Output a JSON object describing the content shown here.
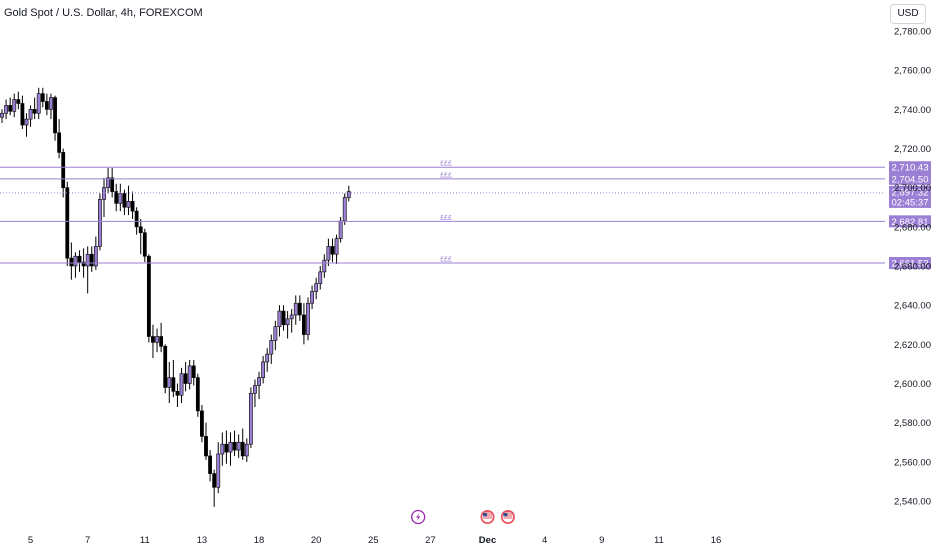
{
  "header": {
    "title": "Gold Spot / U.S. Dollar, 4h, FOREXCOM",
    "currency": "USD"
  },
  "colors": {
    "up_candle": "#9b7fd4",
    "down_candle": "#000000",
    "level_line": "#9b7fd4",
    "price_line": "#9b7fd4",
    "axis_text": "#131722"
  },
  "chart_data": {
    "type": "candlestick",
    "ylim": [
      2530,
      2790
    ],
    "y_ticks": [
      "2,780.00",
      "2,760.00",
      "2,740.00",
      "2,720.00",
      "2,700.00",
      "2,680.00",
      "2,660.00",
      "2,640.00",
      "2,620.00",
      "2,600.00",
      "2,580.00",
      "2,560.00",
      "2,540.00"
    ],
    "y_tick_values": [
      2780,
      2760,
      2740,
      2720,
      2700,
      2680,
      2660,
      2640,
      2620,
      2600,
      2580,
      2560,
      2540
    ],
    "x_ticks": [
      "5",
      "7",
      "11",
      "13",
      "18",
      "20",
      "25",
      "27",
      "Dec",
      "4",
      "9",
      "11",
      "16"
    ],
    "x_tick_candle_index": [
      7,
      21,
      35,
      49,
      63,
      77,
      91,
      105,
      119,
      133,
      147,
      161,
      175
    ],
    "levels": [
      {
        "label": "2,710.43",
        "value": 2710.43,
        "tag": "£££"
      },
      {
        "label": "2,704.50",
        "value": 2704.5,
        "tag": "£££"
      },
      {
        "label": "2,682.81",
        "value": 2682.81,
        "tag": "£££"
      },
      {
        "label": "2,661.52",
        "value": 2661.52,
        "tag": "£££"
      }
    ],
    "current_price": {
      "label": "2,697.32",
      "value": 2697.32,
      "countdown": "02:45:37"
    },
    "event_icons": [
      {
        "name": "flash-icon",
        "candle_index": 102
      },
      {
        "name": "us-flag-icon",
        "candle_index": 119
      },
      {
        "name": "us-flag-icon",
        "candle_index": 124
      }
    ],
    "candles": [
      [
        2736,
        2740,
        2733,
        2738
      ],
      [
        2738,
        2745,
        2735,
        2742
      ],
      [
        2742,
        2746,
        2737,
        2739
      ],
      [
        2739,
        2748,
        2736,
        2745
      ],
      [
        2745,
        2749,
        2740,
        2743
      ],
      [
        2743,
        2747,
        2730,
        2732
      ],
      [
        2732,
        2738,
        2726,
        2735
      ],
      [
        2735,
        2742,
        2731,
        2740
      ],
      [
        2740,
        2746,
        2735,
        2738
      ],
      [
        2738,
        2751,
        2735,
        2748
      ],
      [
        2748,
        2751,
        2741,
        2744
      ],
      [
        2744,
        2748,
        2737,
        2740
      ],
      [
        2740,
        2748,
        2735,
        2746
      ],
      [
        2746,
        2747,
        2724,
        2728
      ],
      [
        2728,
        2735,
        2715,
        2718
      ],
      [
        2718,
        2720,
        2695,
        2700
      ],
      [
        2700,
        2703,
        2660,
        2664
      ],
      [
        2664,
        2672,
        2653,
        2660
      ],
      [
        2660,
        2667,
        2654,
        2665
      ],
      [
        2665,
        2668,
        2657,
        2662
      ],
      [
        2662,
        2669,
        2654,
        2660
      ],
      [
        2660,
        2670,
        2646,
        2666
      ],
      [
        2666,
        2670,
        2657,
        2660
      ],
      [
        2660,
        2675,
        2658,
        2670
      ],
      [
        2670,
        2697,
        2668,
        2694
      ],
      [
        2694,
        2705,
        2685,
        2700
      ],
      [
        2700,
        2710,
        2697,
        2705
      ],
      [
        2705,
        2710,
        2695,
        2698
      ],
      [
        2698,
        2702,
        2688,
        2692
      ],
      [
        2692,
        2702,
        2688,
        2697
      ],
      [
        2697,
        2699,
        2686,
        2690
      ],
      [
        2690,
        2701,
        2686,
        2693
      ],
      [
        2693,
        2698,
        2684,
        2688
      ],
      [
        2688,
        2690,
        2676,
        2680
      ],
      [
        2680,
        2684,
        2666,
        2677
      ],
      [
        2677,
        2679,
        2662,
        2665
      ],
      [
        2665,
        2666,
        2621,
        2624
      ],
      [
        2624,
        2630,
        2613,
        2621
      ],
      [
        2621,
        2628,
        2616,
        2624
      ],
      [
        2624,
        2631,
        2616,
        2619
      ],
      [
        2619,
        2620,
        2595,
        2598
      ],
      [
        2598,
        2611,
        2590,
        2603
      ],
      [
        2603,
        2612,
        2593,
        2596
      ],
      [
        2596,
        2600,
        2588,
        2594
      ],
      [
        2594,
        2608,
        2590,
        2605
      ],
      [
        2605,
        2611,
        2596,
        2600
      ],
      [
        2600,
        2612,
        2597,
        2609
      ],
      [
        2609,
        2612,
        2599,
        2603
      ],
      [
        2603,
        2605,
        2583,
        2586
      ],
      [
        2586,
        2589,
        2570,
        2573
      ],
      [
        2573,
        2580,
        2561,
        2563
      ],
      [
        2563,
        2566,
        2550,
        2554
      ],
      [
        2554,
        2556,
        2537,
        2547
      ],
      [
        2547,
        2570,
        2544,
        2564
      ],
      [
        2564,
        2575,
        2558,
        2569
      ],
      [
        2569,
        2576,
        2559,
        2565
      ],
      [
        2565,
        2575,
        2558,
        2570
      ],
      [
        2570,
        2576,
        2563,
        2566
      ],
      [
        2566,
        2574,
        2562,
        2570
      ],
      [
        2570,
        2577,
        2561,
        2563
      ],
      [
        2563,
        2572,
        2560,
        2569
      ],
      [
        2569,
        2598,
        2567,
        2595
      ],
      [
        2595,
        2602,
        2588,
        2599
      ],
      [
        2599,
        2606,
        2592,
        2603
      ],
      [
        2603,
        2614,
        2600,
        2611
      ],
      [
        2611,
        2618,
        2606,
        2615
      ],
      [
        2615,
        2625,
        2610,
        2622
      ],
      [
        2622,
        2632,
        2617,
        2629
      ],
      [
        2629,
        2640,
        2624,
        2637
      ],
      [
        2637,
        2640,
        2627,
        2630
      ],
      [
        2630,
        2637,
        2623,
        2633
      ],
      [
        2633,
        2638,
        2626,
        2635
      ],
      [
        2635,
        2645,
        2630,
        2641
      ],
      [
        2641,
        2645,
        2632,
        2635
      ],
      [
        2635,
        2641,
        2620,
        2625
      ],
      [
        2625,
        2644,
        2622,
        2641
      ],
      [
        2641,
        2650,
        2638,
        2647
      ],
      [
        2647,
        2654,
        2643,
        2651
      ],
      [
        2651,
        2660,
        2648,
        2657
      ],
      [
        2657,
        2666,
        2654,
        2663
      ],
      [
        2663,
        2674,
        2660,
        2670
      ],
      [
        2670,
        2674,
        2662,
        2666
      ],
      [
        2666,
        2676,
        2661,
        2674
      ],
      [
        2674,
        2685,
        2672,
        2683
      ],
      [
        2683,
        2697,
        2681,
        2695
      ],
      [
        2695,
        2701,
        2693,
        2698
      ]
    ]
  }
}
